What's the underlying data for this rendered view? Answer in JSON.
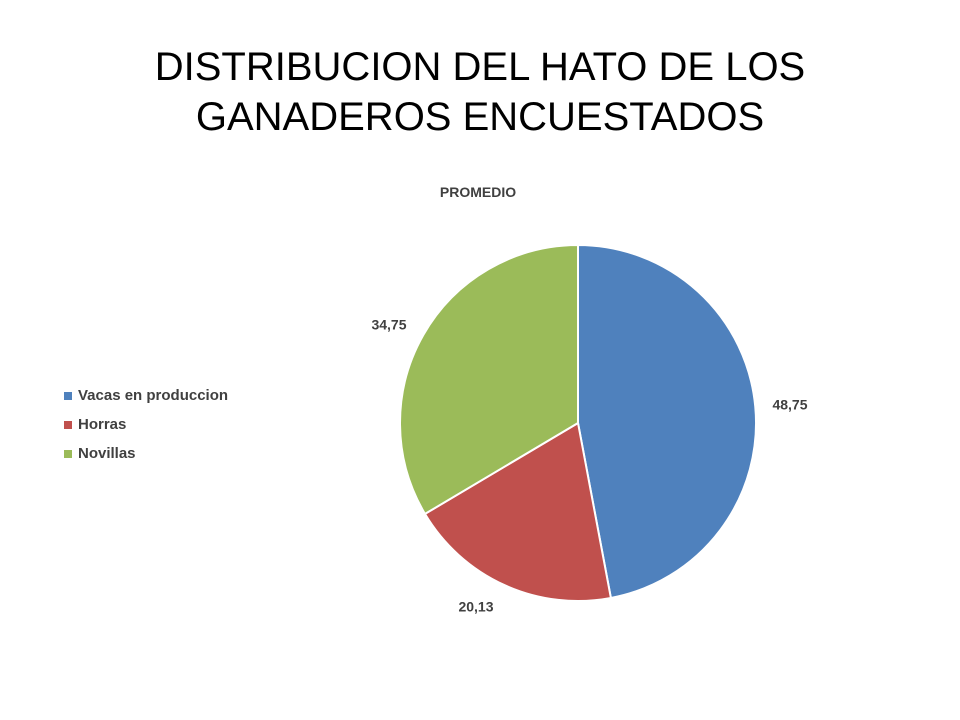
{
  "slide": {
    "title": "DISTRIBUCION DEL HATO DE LOS GANADEROS ENCUESTADOS"
  },
  "chart_data": {
    "type": "pie",
    "title": "PROMEDIO",
    "categories": [
      "Vacas en produccion",
      "Horras",
      "Novillas"
    ],
    "values": [
      48.75,
      20.13,
      34.75
    ],
    "data_labels": [
      "48,75",
      "20,13",
      "34,75"
    ],
    "colors": [
      "#4F81BD",
      "#C0504D",
      "#9BBB59"
    ],
    "legend_position": "left",
    "start_angle": "top, clockwise"
  }
}
